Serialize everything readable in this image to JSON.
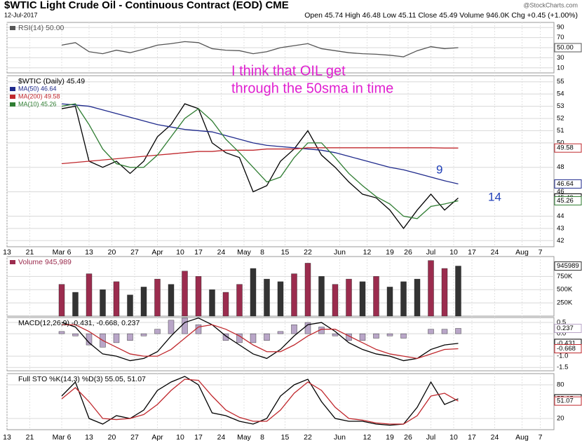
{
  "header": {
    "title": "$WTIC Light Crude Oil - Continuous Contract (EOD) CME",
    "date": "12-Jul-2017",
    "quote": "Open 45.74 High 46.48 Low 45.11 Close 45.49 Volume 946.0K Chg +0.45 (+1.00%)",
    "credit": "@StockCharts.com"
  },
  "chart_data": [
    {
      "type": "line",
      "last_label": "50.00",
      "x": [
        12,
        15,
        18,
        21,
        24,
        27,
        30,
        33,
        36,
        39,
        42,
        45,
        48,
        51,
        54,
        57,
        60,
        63,
        66,
        69,
        72,
        75,
        78,
        81,
        84,
        87,
        90,
        93,
        96,
        99
      ],
      "xlim": [
        0,
        120
      ],
      "ylim": [
        0,
        100
      ],
      "yticks": [
        10,
        30,
        50,
        70,
        90
      ],
      "grid": true,
      "series": [
        {
          "name": "RSI(14) 50.00",
          "color": "#555555",
          "values": [
            55,
            60,
            42,
            38,
            45,
            40,
            47,
            55,
            58,
            62,
            60,
            48,
            45,
            44,
            38,
            42,
            50,
            54,
            58,
            48,
            44,
            40,
            38,
            37,
            35,
            32,
            44,
            52,
            48,
            50
          ]
        }
      ]
    },
    {
      "type": "line",
      "title": "$WTIC (Daily) 45.49",
      "x": [
        12,
        15,
        18,
        21,
        24,
        27,
        30,
        33,
        36,
        39,
        42,
        45,
        48,
        51,
        54,
        57,
        60,
        63,
        66,
        69,
        72,
        75,
        78,
        81,
        84,
        87,
        90,
        93,
        96,
        99
      ],
      "xlim": [
        0,
        120
      ],
      "ylim": [
        41.5,
        55.5
      ],
      "yticks": [
        42,
        43,
        44,
        46,
        48,
        50,
        51,
        52,
        53,
        54,
        55
      ],
      "grid": true,
      "xticks": [
        {
          "value": 0,
          "label": "13"
        },
        {
          "value": 5,
          "label": "21"
        },
        {
          "value": 12,
          "label": "Mar 6"
        },
        {
          "value": 18,
          "label": "13"
        },
        {
          "value": 23,
          "label": "20"
        },
        {
          "value": 28,
          "label": "27"
        },
        {
          "value": 33,
          "label": "Apr"
        },
        {
          "value": 38,
          "label": "10"
        },
        {
          "value": 42,
          "label": "17"
        },
        {
          "value": 47,
          "label": "24"
        },
        {
          "value": 52,
          "label": "May"
        },
        {
          "value": 56,
          "label": "8"
        },
        {
          "value": 61,
          "label": "15"
        },
        {
          "value": 66,
          "label": "22"
        },
        {
          "value": 73,
          "label": "Jun"
        },
        {
          "value": 79,
          "label": "12"
        },
        {
          "value": 84,
          "label": "19"
        },
        {
          "value": 88,
          "label": "26"
        },
        {
          "value": 93,
          "label": "Jul"
        },
        {
          "value": 98,
          "label": "10"
        },
        {
          "value": 102,
          "label": "17"
        },
        {
          "value": 107,
          "label": "24"
        },
        {
          "value": 113,
          "label": "Aug"
        },
        {
          "value": 117,
          "label": "7"
        }
      ],
      "series": [
        {
          "color": "#000000",
          "values": [
            52.8,
            53.0,
            48.5,
            48.0,
            48.5,
            47.5,
            48.5,
            50.5,
            51.5,
            53.2,
            52.8,
            50.0,
            49.2,
            48.8,
            46.0,
            46.5,
            48.5,
            49.5,
            51.0,
            49.0,
            48.0,
            46.8,
            45.8,
            45.5,
            44.5,
            43.0,
            44.5,
            45.8,
            44.5,
            45.49
          ]
        },
        {
          "name": "MA(50) 46.64",
          "color": "#1f2a8c",
          "values": [
            53.2,
            53.1,
            53.0,
            52.7,
            52.4,
            52.1,
            51.8,
            51.5,
            51.3,
            51.1,
            51.0,
            50.9,
            50.6,
            50.3,
            50.0,
            49.8,
            49.7,
            49.6,
            49.5,
            49.4,
            49.2,
            48.9,
            48.6,
            48.3,
            48.0,
            47.8,
            47.5,
            47.2,
            46.9,
            46.64
          ]
        },
        {
          "name": "MA(200) 49.58",
          "color": "#c0282d",
          "values": [
            48.3,
            48.4,
            48.5,
            48.6,
            48.7,
            48.8,
            48.9,
            49.0,
            49.1,
            49.2,
            49.3,
            49.3,
            49.4,
            49.4,
            49.4,
            49.5,
            49.5,
            49.5,
            49.6,
            49.6,
            49.6,
            49.6,
            49.6,
            49.6,
            49.6,
            49.6,
            49.6,
            49.6,
            49.58,
            49.58
          ]
        },
        {
          "name": "MA(10) 45.26",
          "color": "#2f7d32",
          "values": [
            53.0,
            53.2,
            51.5,
            49.5,
            48.3,
            48.0,
            48.0,
            49.0,
            50.5,
            52.0,
            52.8,
            51.8,
            50.3,
            49.2,
            48.0,
            46.8,
            47.2,
            48.8,
            50.0,
            50.0,
            48.8,
            47.5,
            46.5,
            45.6,
            45.0,
            44.0,
            43.8,
            44.8,
            45.0,
            45.26
          ]
        }
      ],
      "annotations": [
        {
          "text": "I think that OIL get",
          "color": "#e020d0"
        },
        {
          "text": "through the 50sma in time",
          "color": "#e020d0"
        },
        {
          "text": "9",
          "color": "#1f3fb8"
        },
        {
          "text": "14",
          "color": "#1f3fb8"
        }
      ]
    },
    {
      "type": "bar",
      "x": [
        12,
        15,
        18,
        21,
        24,
        27,
        30,
        33,
        36,
        39,
        42,
        45,
        48,
        51,
        54,
        57,
        60,
        63,
        66,
        69,
        72,
        75,
        78,
        81,
        84,
        87,
        90,
        93,
        96,
        99
      ],
      "xlim": [
        0,
        120
      ],
      "ylim": [
        0,
        1125000
      ],
      "grid": true,
      "yticks": [
        {
          "value": 250000,
          "label": "250K"
        },
        {
          "value": 500000,
          "label": "500K"
        },
        {
          "value": 750000,
          "label": "750K"
        }
      ],
      "series": [
        {
          "name": "Volume 945,989",
          "color": "#9b2c4e",
          "values": [
            600000,
            450000,
            800000,
            500000,
            650000,
            400000,
            550000,
            700000,
            600000,
            850000,
            750000,
            500000,
            450000,
            600000,
            900000,
            700000,
            650000,
            800000,
            1000000,
            750000,
            600000,
            700000,
            650000,
            750000,
            550000,
            650000,
            700000,
            1050000,
            900000,
            945989
          ],
          "colors": [
            "#9b2c4e",
            "#333333",
            "#9b2c4e",
            "#333333",
            "#9b2c4e",
            "#333333",
            "#333333",
            "#9b2c4e",
            "#333333",
            "#9b2c4e",
            "#9b2c4e",
            "#333333",
            "#9b2c4e",
            "#9b2c4e",
            "#333333",
            "#333333",
            "#333333",
            "#9b2c4e",
            "#9b2c4e",
            "#333333",
            "#9b2c4e",
            "#9b2c4e",
            "#333333",
            "#9b2c4e",
            "#333333",
            "#333333",
            "#333333",
            "#9b2c4e",
            "#9b2c4e",
            "#333333"
          ]
        }
      ]
    },
    {
      "type": "line",
      "title": "MACD(12,26,9) -0.431, -0.668, 0.237",
      "x": [
        12,
        15,
        18,
        21,
        24,
        27,
        30,
        33,
        36,
        39,
        42,
        45,
        48,
        51,
        54,
        57,
        60,
        63,
        66,
        69,
        72,
        75,
        78,
        81,
        84,
        87,
        90,
        93,
        96,
        99
      ],
      "xlim": [
        0,
        120
      ],
      "ylim": [
        -1.65,
        0.72
      ],
      "grid": true,
      "yticks": [
        0.5,
        {
          "value": 0,
          "label": "0.0"
        },
        {
          "value": -1,
          "label": "-1.0"
        },
        -1.5
      ],
      "series": [
        {
          "kind": "bar",
          "color": "#b9a6c8",
          "values": [
            0.1,
            -0.1,
            -0.5,
            -0.6,
            -0.4,
            -0.3,
            -0.1,
            0.2,
            0.6,
            0.7,
            0.4,
            0.0,
            -0.3,
            -0.4,
            -0.4,
            -0.3,
            0.1,
            0.4,
            0.5,
            0.3,
            -0.1,
            -0.3,
            -0.3,
            -0.2,
            -0.1,
            -0.2,
            0.0,
            0.2,
            0.2,
            0.237
          ]
        },
        {
          "color": "#000000",
          "values": [
            0.5,
            0.3,
            -0.4,
            -0.9,
            -1.0,
            -1.2,
            -1.1,
            -0.8,
            -0.1,
            0.5,
            0.7,
            0.4,
            -0.1,
            -0.5,
            -0.9,
            -1.1,
            -0.7,
            -0.1,
            0.4,
            0.5,
            0.1,
            -0.4,
            -0.7,
            -0.9,
            -1.0,
            -1.2,
            -1.1,
            -0.7,
            -0.5,
            -0.431
          ]
        },
        {
          "color": "#c0282d",
          "values": [
            0.4,
            0.4,
            0.1,
            -0.3,
            -0.6,
            -0.9,
            -1.0,
            -1.0,
            -0.7,
            -0.2,
            0.3,
            0.4,
            0.2,
            -0.1,
            -0.5,
            -0.8,
            -0.8,
            -0.5,
            -0.1,
            0.2,
            0.2,
            -0.1,
            -0.4,
            -0.7,
            -0.9,
            -1.0,
            -1.1,
            -0.9,
            -0.7,
            -0.668
          ]
        }
      ]
    },
    {
      "type": "line",
      "title": "Full STO %K(14,3) %D(3) 55.05, 51.07",
      "x": [
        12,
        15,
        18,
        21,
        24,
        27,
        30,
        33,
        36,
        39,
        42,
        45,
        48,
        51,
        54,
        57,
        60,
        63,
        66,
        69,
        72,
        75,
        78,
        81,
        84,
        87,
        90,
        93,
        96,
        99
      ],
      "xlim": [
        0,
        120
      ],
      "ylim": [
        0,
        100
      ],
      "yticks": [
        20,
        80
      ],
      "grid": true,
      "xticks": [
        {
          "value": 0,
          "label": "13"
        },
        {
          "value": 5,
          "label": "21"
        },
        {
          "value": 12,
          "label": "Mar 6"
        },
        {
          "value": 18,
          "label": "13"
        },
        {
          "value": 23,
          "label": "20"
        },
        {
          "value": 28,
          "label": "27"
        },
        {
          "value": 33,
          "label": "Apr"
        },
        {
          "value": 38,
          "label": "10"
        },
        {
          "value": 42,
          "label": "17"
        },
        {
          "value": 47,
          "label": "24"
        },
        {
          "value": 52,
          "label": "May"
        },
        {
          "value": 56,
          "label": "8"
        },
        {
          "value": 61,
          "label": "15"
        },
        {
          "value": 66,
          "label": "22"
        },
        {
          "value": 73,
          "label": "Jun"
        },
        {
          "value": 79,
          "label": "12"
        },
        {
          "value": 84,
          "label": "19"
        },
        {
          "value": 88,
          "label": "26"
        },
        {
          "value": 93,
          "label": "Jul"
        },
        {
          "value": 98,
          "label": "10"
        },
        {
          "value": 102,
          "label": "17"
        },
        {
          "value": 107,
          "label": "24"
        },
        {
          "value": 113,
          "label": "Aug"
        },
        {
          "value": 117,
          "label": "7"
        }
      ],
      "series": [
        {
          "color": "#000000",
          "values": [
            60,
            85,
            20,
            10,
            25,
            20,
            35,
            70,
            85,
            95,
            80,
            30,
            25,
            15,
            10,
            20,
            60,
            80,
            90,
            50,
            20,
            15,
            15,
            10,
            8,
            10,
            40,
            85,
            45,
            55.05
          ]
        },
        {
          "color": "#c0282d",
          "values": [
            55,
            75,
            50,
            20,
            18,
            20,
            27,
            45,
            70,
            90,
            88,
            60,
            35,
            22,
            15,
            15,
            35,
            65,
            85,
            70,
            40,
            20,
            17,
            12,
            10,
            10,
            25,
            60,
            65,
            51.07
          ]
        }
      ]
    }
  ]
}
